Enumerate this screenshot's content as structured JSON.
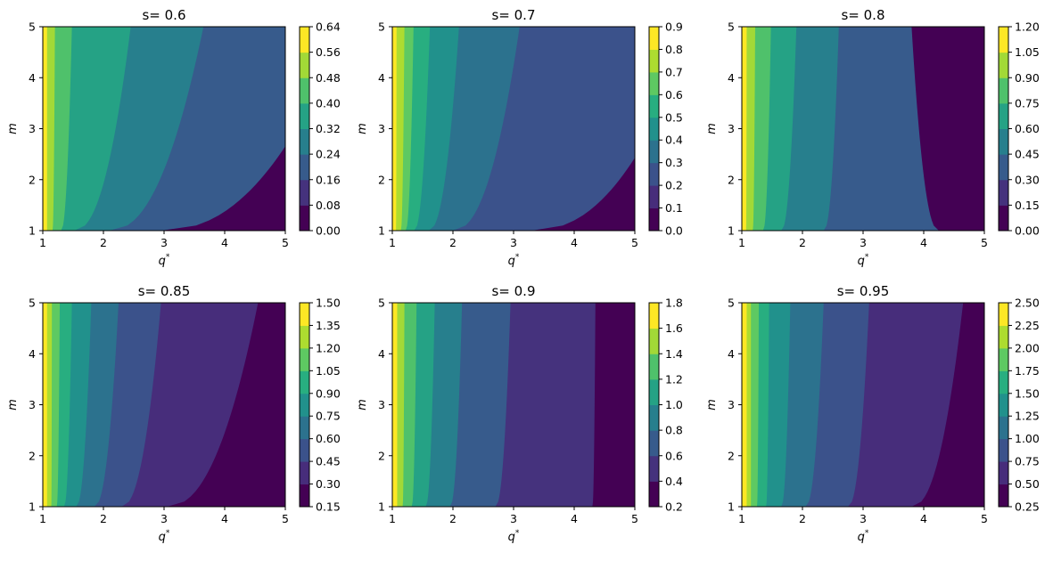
{
  "chart_data": [
    {
      "type": "heatmap",
      "title": "s= 0.6",
      "s": 0.6,
      "xlabel": "q*",
      "ylabel": "m",
      "xlim": [
        1,
        5
      ],
      "ylim": [
        1,
        5
      ],
      "xticks": [
        "1",
        "2",
        "3",
        "4",
        "5"
      ],
      "yticks": [
        "1",
        "2",
        "3",
        "4",
        "5"
      ],
      "levels": [
        0.0,
        0.08,
        0.16,
        0.24,
        0.32,
        0.4,
        0.48,
        0.56,
        0.64
      ],
      "colorbar_ticks": [
        "0.00",
        "0.08",
        "0.16",
        "0.24",
        "0.32",
        "0.40",
        "0.48",
        "0.56",
        "0.64"
      ],
      "bottom_boundaries": [
        1.07,
        1.16,
        1.3,
        1.52,
        2.1,
        2.95
      ],
      "top_boundaries": [
        1.07,
        1.2,
        1.48,
        2.45,
        3.65,
        6.0
      ]
    },
    {
      "type": "heatmap",
      "title": "s= 0.7",
      "s": 0.7,
      "xlabel": "q*",
      "ylabel": "m",
      "xlim": [
        1,
        5
      ],
      "ylim": [
        1,
        5
      ],
      "xticks": [
        "1",
        "2",
        "3",
        "4",
        "5"
      ],
      "yticks": [
        "1",
        "2",
        "3",
        "4",
        "5"
      ],
      "levels": [
        0.0,
        0.1,
        0.2,
        0.3,
        0.4,
        0.5,
        0.6,
        0.7,
        0.8,
        0.9
      ],
      "colorbar_ticks": [
        "0.0",
        "0.1",
        "0.2",
        "0.3",
        "0.4",
        "0.5",
        "0.6",
        "0.7",
        "0.8",
        "0.9"
      ],
      "bottom_boundaries": [
        1.06,
        1.14,
        1.22,
        1.36,
        1.6,
        2.0,
        3.3
      ],
      "top_boundaries": [
        1.07,
        1.2,
        1.35,
        1.62,
        2.1,
        3.1,
        6.0
      ]
    },
    {
      "type": "heatmap",
      "title": "s= 0.8",
      "s": 0.8,
      "xlabel": "q*",
      "ylabel": "m",
      "xlim": [
        1,
        5
      ],
      "ylim": [
        1,
        5
      ],
      "xticks": [
        "1",
        "2",
        "3",
        "4",
        "5"
      ],
      "yticks": [
        "1",
        "2",
        "3",
        "4",
        "5"
      ],
      "levels": [
        0.0,
        0.15,
        0.3,
        0.45,
        0.6,
        0.75,
        0.9,
        1.05,
        1.2
      ],
      "colorbar_ticks": [
        "0.00",
        "0.15",
        "0.30",
        "0.45",
        "0.60",
        "0.75",
        "0.90",
        "1.05",
        "1.20"
      ],
      "bottom_boundaries": [
        1.07,
        1.18,
        1.35,
        1.65,
        2.35,
        4.25
      ],
      "top_boundaries": [
        1.08,
        1.22,
        1.48,
        1.9,
        2.6,
        3.8
      ]
    },
    {
      "type": "heatmap",
      "title": "s= 0.85",
      "s": 0.85,
      "xlabel": "q*",
      "ylabel": "m",
      "xlim": [
        1,
        5
      ],
      "ylim": [
        1,
        5
      ],
      "xticks": [
        "1",
        "2",
        "3",
        "4",
        "5"
      ],
      "yticks": [
        "1",
        "2",
        "3",
        "4",
        "5"
      ],
      "levels": [
        0.15,
        0.3,
        0.45,
        0.6,
        0.75,
        0.9,
        1.05,
        1.2,
        1.35,
        1.5
      ],
      "colorbar_ticks": [
        "0.15",
        "0.30",
        "0.45",
        "0.60",
        "0.75",
        "0.90",
        "1.05",
        "1.20",
        "1.35",
        "1.50"
      ],
      "bottom_boundaries": [
        1.07,
        1.14,
        1.23,
        1.35,
        1.55,
        1.85,
        2.3,
        3.05
      ],
      "top_boundaries": [
        1.07,
        1.15,
        1.28,
        1.48,
        1.8,
        2.25,
        2.95,
        4.55
      ]
    },
    {
      "type": "heatmap",
      "title": "s= 0.9",
      "s": 0.9,
      "xlabel": "q*",
      "ylabel": "m",
      "xlim": [
        1,
        5
      ],
      "ylim": [
        1,
        5
      ],
      "xticks": [
        "1",
        "2",
        "3",
        "4",
        "5"
      ],
      "yticks": [
        "1",
        "2",
        "3",
        "4",
        "5"
      ],
      "levels": [
        0.2,
        0.4,
        0.6,
        0.8,
        1.0,
        1.2,
        1.4,
        1.6,
        1.8
      ],
      "colorbar_ticks": [
        "0.2",
        "0.4",
        "0.6",
        "0.8",
        "1.0",
        "1.2",
        "1.4",
        "1.6",
        "1.8"
      ],
      "bottom_boundaries": [
        1.08,
        1.17,
        1.32,
        1.55,
        1.95,
        2.7,
        4.3
      ],
      "top_boundaries": [
        1.08,
        1.2,
        1.4,
        1.7,
        2.15,
        2.95,
        4.35
      ]
    },
    {
      "type": "heatmap",
      "title": "s= 0.95",
      "s": 0.95,
      "xlabel": "q*",
      "ylabel": "m",
      "xlim": [
        1,
        5
      ],
      "ylim": [
        1,
        5
      ],
      "xticks": [
        "1",
        "2",
        "3",
        "4",
        "5"
      ],
      "yticks": [
        "1",
        "2",
        "3",
        "4",
        "5"
      ],
      "levels": [
        0.25,
        0.5,
        0.75,
        1.0,
        1.25,
        1.5,
        1.75,
        2.0,
        2.25,
        2.5
      ],
      "colorbar_ticks": [
        "0.25",
        "0.50",
        "0.75",
        "1.00",
        "1.25",
        "1.50",
        "1.75",
        "2.00",
        "2.25",
        "2.50"
      ],
      "bottom_boundaries": [
        1.08,
        1.15,
        1.25,
        1.4,
        1.65,
        2.05,
        2.75,
        3.8
      ],
      "top_boundaries": [
        1.08,
        1.15,
        1.28,
        1.45,
        1.8,
        2.35,
        3.1,
        4.65
      ]
    }
  ],
  "colormap": [
    "#440154",
    "#472d7b",
    "#3b528b",
    "#2c728e",
    "#21918c",
    "#28ae80",
    "#5ec962",
    "#addc30",
    "#fde725"
  ]
}
